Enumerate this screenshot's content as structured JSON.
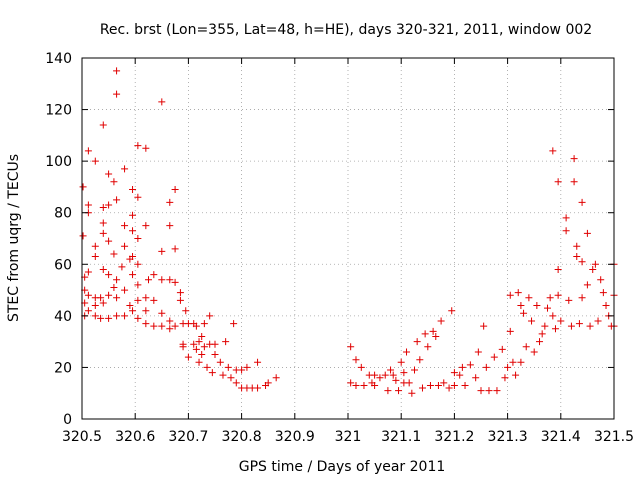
{
  "chart_data": {
    "type": "scatter",
    "title": "Rec. brst (Lon=355, Lat=48, h=HE), days 320-321, 2011, window 002",
    "xlabel": "GPS time / Days of year 2011",
    "ylabel": "STEC from uqrg / TECUs",
    "xlim": [
      320.5,
      321.5
    ],
    "ylim": [
      0,
      140
    ],
    "xticks": [
      320.5,
      320.6,
      320.7,
      320.8,
      320.9,
      321.0,
      321.1,
      321.2,
      321.3,
      321.4,
      321.5
    ],
    "xtick_labels": [
      "320.5",
      "320.6",
      "320.7",
      "320.8",
      "320.9",
      "321",
      "321.1",
      "321.2",
      "321.3",
      "321.4",
      "321.5"
    ],
    "yticks": [
      0,
      20,
      40,
      60,
      80,
      100,
      120,
      140
    ],
    "ytick_labels": [
      "0",
      "20",
      "40",
      "60",
      "80",
      "100",
      "120",
      "140"
    ],
    "grid": true,
    "marker": "+",
    "color": "#e00000",
    "points": [
      [
        320.502,
        90
      ],
      [
        320.502,
        71
      ],
      [
        320.505,
        55
      ],
      [
        320.505,
        50
      ],
      [
        320.505,
        45
      ],
      [
        320.505,
        40
      ],
      [
        320.512,
        104
      ],
      [
        320.512,
        83
      ],
      [
        320.512,
        80
      ],
      [
        320.512,
        57
      ],
      [
        320.512,
        48
      ],
      [
        320.512,
        42
      ],
      [
        320.525,
        100
      ],
      [
        320.525,
        67
      ],
      [
        320.525,
        63
      ],
      [
        320.525,
        47
      ],
      [
        320.525,
        44
      ],
      [
        320.525,
        40
      ],
      [
        320.535,
        47
      ],
      [
        320.535,
        39
      ],
      [
        320.54,
        114
      ],
      [
        320.54,
        82
      ],
      [
        320.54,
        76
      ],
      [
        320.54,
        72
      ],
      [
        320.54,
        58
      ],
      [
        320.54,
        45
      ],
      [
        320.55,
        95
      ],
      [
        320.55,
        83
      ],
      [
        320.55,
        69
      ],
      [
        320.55,
        56
      ],
      [
        320.55,
        48
      ],
      [
        320.55,
        39
      ],
      [
        320.56,
        92
      ],
      [
        320.56,
        64
      ],
      [
        320.56,
        51
      ],
      [
        320.565,
        135
      ],
      [
        320.565,
        126
      ],
      [
        320.565,
        85
      ],
      [
        320.565,
        54
      ],
      [
        320.565,
        47
      ],
      [
        320.565,
        40
      ],
      [
        320.575,
        59
      ],
      [
        320.58,
        97
      ],
      [
        320.58,
        75
      ],
      [
        320.58,
        67
      ],
      [
        320.58,
        50
      ],
      [
        320.58,
        40
      ],
      [
        320.59,
        62
      ],
      [
        320.59,
        44
      ],
      [
        320.595,
        89
      ],
      [
        320.595,
        79
      ],
      [
        320.595,
        73
      ],
      [
        320.595,
        63
      ],
      [
        320.595,
        56
      ],
      [
        320.595,
        42
      ],
      [
        320.605,
        106
      ],
      [
        320.605,
        86
      ],
      [
        320.605,
        70
      ],
      [
        320.605,
        60
      ],
      [
        320.605,
        52
      ],
      [
        320.605,
        46
      ],
      [
        320.605,
        39
      ],
      [
        320.62,
        105
      ],
      [
        320.62,
        75
      ],
      [
        320.62,
        47
      ],
      [
        320.62,
        42
      ],
      [
        320.62,
        37
      ],
      [
        320.625,
        54
      ],
      [
        320.635,
        56
      ],
      [
        320.635,
        46
      ],
      [
        320.635,
        36
      ],
      [
        320.65,
        123
      ],
      [
        320.65,
        65
      ],
      [
        320.65,
        54
      ],
      [
        320.65,
        41
      ],
      [
        320.65,
        36
      ],
      [
        320.665,
        84
      ],
      [
        320.665,
        75
      ],
      [
        320.665,
        54
      ],
      [
        320.665,
        38
      ],
      [
        320.665,
        35
      ],
      [
        320.675,
        89
      ],
      [
        320.675,
        66
      ],
      [
        320.675,
        53
      ],
      [
        320.675,
        36
      ],
      [
        320.685,
        49
      ],
      [
        320.685,
        46
      ],
      [
        320.69,
        37
      ],
      [
        320.69,
        29
      ],
      [
        320.69,
        28
      ],
      [
        320.695,
        42
      ],
      [
        320.7,
        37
      ],
      [
        320.7,
        24
      ],
      [
        320.71,
        37
      ],
      [
        320.71,
        29
      ],
      [
        320.715,
        36
      ],
      [
        320.715,
        27
      ],
      [
        320.72,
        30
      ],
      [
        320.72,
        22
      ],
      [
        320.725,
        32
      ],
      [
        320.725,
        25
      ],
      [
        320.73,
        37
      ],
      [
        320.73,
        28
      ],
      [
        320.735,
        20
      ],
      [
        320.74,
        40
      ],
      [
        320.74,
        29
      ],
      [
        320.745,
        18
      ],
      [
        320.75,
        29
      ],
      [
        320.75,
        25
      ],
      [
        320.76,
        22
      ],
      [
        320.765,
        17
      ],
      [
        320.77,
        30
      ],
      [
        320.775,
        20
      ],
      [
        320.78,
        16
      ],
      [
        320.785,
        37
      ],
      [
        320.79,
        19
      ],
      [
        320.79,
        14
      ],
      [
        320.8,
        19
      ],
      [
        320.8,
        12
      ],
      [
        320.81,
        20
      ],
      [
        320.81,
        12
      ],
      [
        320.82,
        12
      ],
      [
        320.83,
        22
      ],
      [
        320.83,
        12
      ],
      [
        320.845,
        13
      ],
      [
        320.85,
        14
      ],
      [
        320.865,
        16
      ],
      [
        321.005,
        28
      ],
      [
        321.005,
        14
      ],
      [
        321.015,
        23
      ],
      [
        321.015,
        13
      ],
      [
        321.025,
        20
      ],
      [
        321.03,
        13
      ],
      [
        321.04,
        17
      ],
      [
        321.045,
        14
      ],
      [
        321.05,
        17
      ],
      [
        321.05,
        13
      ],
      [
        321.06,
        16
      ],
      [
        321.07,
        17
      ],
      [
        321.075,
        11
      ],
      [
        321.08,
        19
      ],
      [
        321.085,
        17
      ],
      [
        321.09,
        15
      ],
      [
        321.095,
        11
      ],
      [
        321.1,
        22
      ],
      [
        321.105,
        18
      ],
      [
        321.105,
        14
      ],
      [
        321.11,
        26
      ],
      [
        321.115,
        14
      ],
      [
        321.12,
        10
      ],
      [
        321.125,
        19
      ],
      [
        321.13,
        30
      ],
      [
        321.135,
        23
      ],
      [
        321.14,
        12
      ],
      [
        321.145,
        33
      ],
      [
        321.15,
        28
      ],
      [
        321.155,
        13
      ],
      [
        321.16,
        34
      ],
      [
        321.165,
        32
      ],
      [
        321.17,
        13
      ],
      [
        321.175,
        38
      ],
      [
        321.18,
        14
      ],
      [
        321.19,
        12
      ],
      [
        321.195,
        42
      ],
      [
        321.2,
        18
      ],
      [
        321.2,
        13
      ],
      [
        321.21,
        17
      ],
      [
        321.215,
        20
      ],
      [
        321.22,
        13
      ],
      [
        321.23,
        21
      ],
      [
        321.24,
        16
      ],
      [
        321.245,
        26
      ],
      [
        321.25,
        11
      ],
      [
        321.255,
        36
      ],
      [
        321.26,
        20
      ],
      [
        321.265,
        11
      ],
      [
        321.275,
        24
      ],
      [
        321.28,
        11
      ],
      [
        321.29,
        27
      ],
      [
        321.295,
        16
      ],
      [
        321.3,
        20
      ],
      [
        321.305,
        48
      ],
      [
        321.305,
        34
      ],
      [
        321.31,
        22
      ],
      [
        321.315,
        17
      ],
      [
        321.32,
        49
      ],
      [
        321.325,
        44
      ],
      [
        321.325,
        22
      ],
      [
        321.33,
        41
      ],
      [
        321.335,
        28
      ],
      [
        321.34,
        47
      ],
      [
        321.345,
        38
      ],
      [
        321.35,
        26
      ],
      [
        321.355,
        44
      ],
      [
        321.36,
        30
      ],
      [
        321.365,
        33
      ],
      [
        321.37,
        36
      ],
      [
        321.375,
        43
      ],
      [
        321.38,
        47
      ],
      [
        321.385,
        104
      ],
      [
        321.385,
        40
      ],
      [
        321.39,
        35
      ],
      [
        321.395,
        92
      ],
      [
        321.395,
        58
      ],
      [
        321.395,
        48
      ],
      [
        321.4,
        38
      ],
      [
        321.41,
        78
      ],
      [
        321.41,
        73
      ],
      [
        321.415,
        46
      ],
      [
        321.42,
        36
      ],
      [
        321.425,
        101
      ],
      [
        321.425,
        92
      ],
      [
        321.43,
        67
      ],
      [
        321.43,
        63
      ],
      [
        321.435,
        37
      ],
      [
        321.44,
        84
      ],
      [
        321.44,
        61
      ],
      [
        321.44,
        47
      ],
      [
        321.45,
        72
      ],
      [
        321.45,
        52
      ],
      [
        321.455,
        36
      ],
      [
        321.46,
        58
      ],
      [
        321.465,
        60
      ],
      [
        321.47,
        38
      ],
      [
        321.475,
        54
      ],
      [
        321.48,
        49
      ],
      [
        321.485,
        44
      ],
      [
        321.49,
        40
      ],
      [
        321.495,
        36
      ],
      [
        321.5,
        60
      ],
      [
        321.5,
        48
      ],
      [
        321.5,
        36
      ]
    ]
  }
}
